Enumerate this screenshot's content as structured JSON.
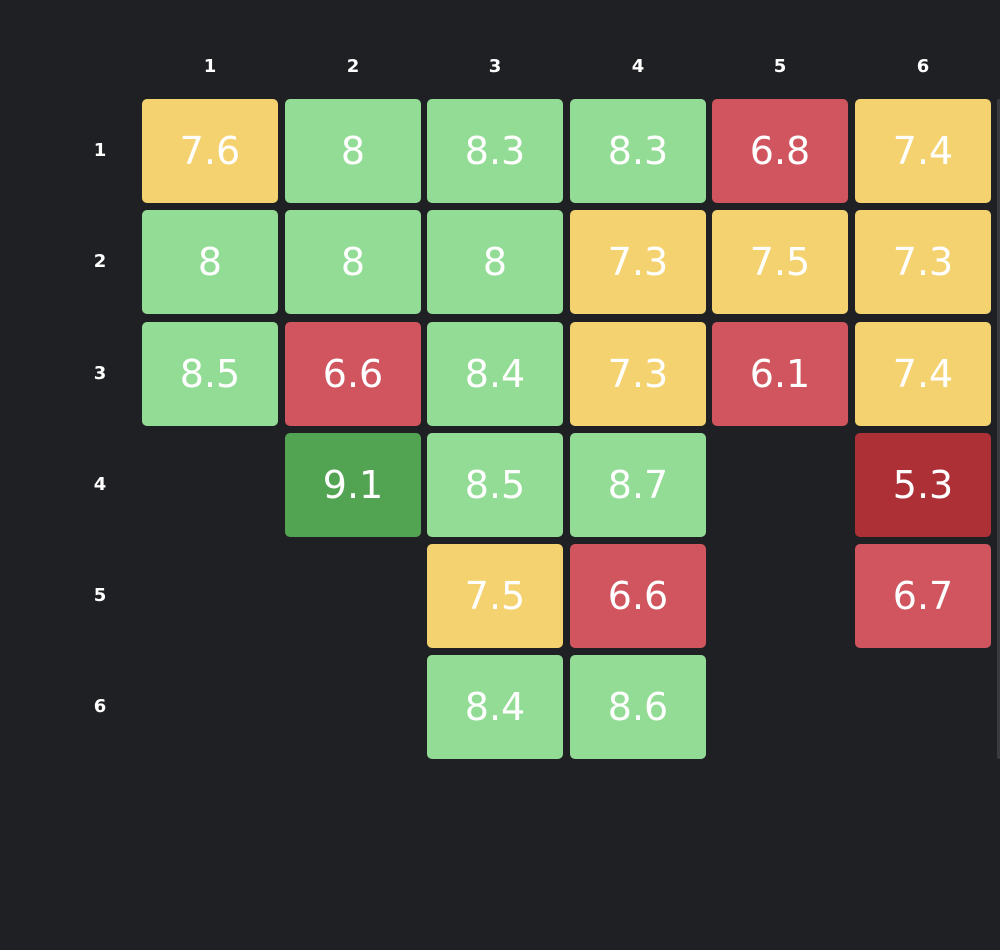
{
  "colors": {
    "background": "#1f2024",
    "high": "#52a352",
    "good": "#93dc95",
    "mid": "#f4d270",
    "low": "#d0555f",
    "very_low": "#ac3036"
  },
  "col_headers": [
    "1",
    "2",
    "3",
    "4",
    "5",
    "6"
  ],
  "row_headers": [
    "1",
    "2",
    "3",
    "4",
    "5",
    "6"
  ],
  "grid": [
    [
      "7.6",
      "8",
      "8.3",
      "8.3",
      "6.8",
      "7.4"
    ],
    [
      "8",
      "8",
      "8",
      "7.3",
      "7.5",
      "7.3"
    ],
    [
      "8.5",
      "6.6",
      "8.4",
      "7.3",
      "6.1",
      "7.4"
    ],
    [
      "",
      "9.1",
      "8.5",
      "8.7",
      "",
      "5.3"
    ],
    [
      "",
      "",
      "7.5",
      "6.6",
      "",
      "6.7"
    ],
    [
      "",
      "",
      "8.4",
      "8.6",
      "",
      ""
    ]
  ]
}
